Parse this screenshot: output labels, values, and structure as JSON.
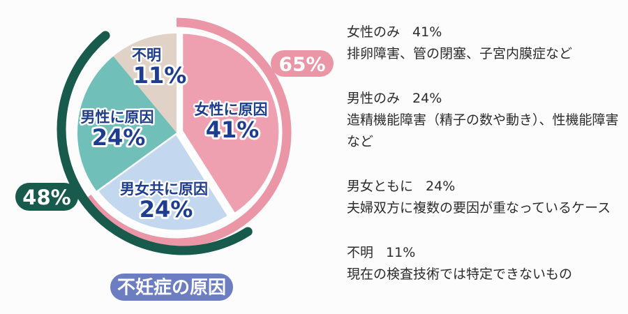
{
  "chart_data": {
    "type": "pie",
    "title": "不妊症の原因",
    "unit": "%",
    "legend_position": "right",
    "segments": [
      {
        "label": "女性に原因",
        "pct_label": "41%",
        "value": 41,
        "color": "#EEA0B1"
      },
      {
        "label": "男女共に原因",
        "pct_label": "24%",
        "value": 24,
        "color": "#C3D8EE"
      },
      {
        "label": "男性に原因",
        "pct_label": "24%",
        "value": 24,
        "color": "#71BFB9"
      },
      {
        "label": "不明",
        "pct_label": "11%",
        "value": 11,
        "color": "#E0D2C6"
      }
    ],
    "overlay_arcs": [
      {
        "label": "65%",
        "start_value": 0,
        "span_value": 65,
        "color": "#EA96A6"
      },
      {
        "label": "48%",
        "start_value": 41,
        "span_value": 48,
        "color": "#185A4C"
      }
    ],
    "slice_label_color": "#1E3D8F"
  },
  "title_badge": {
    "text": "不妊症の原因",
    "bg": "#6C7EC1",
    "text_color": "#FFFFFF"
  },
  "legend": {
    "items": [
      {
        "term": "女性のみ",
        "pct": "41%",
        "desc": "排卵障害、管の閉塞、子宮内膜症など"
      },
      {
        "term": "男性のみ",
        "pct": "24%",
        "desc": "造精機能障害（精子の数や動き）、性機能障害など"
      },
      {
        "term": "男女ともに",
        "pct": "24%",
        "desc": "夫婦双方に複数の要因が重なっているケース"
      },
      {
        "term": "不明",
        "pct": "11%",
        "desc": "現在の検査技術では特定できないもの"
      }
    ]
  }
}
